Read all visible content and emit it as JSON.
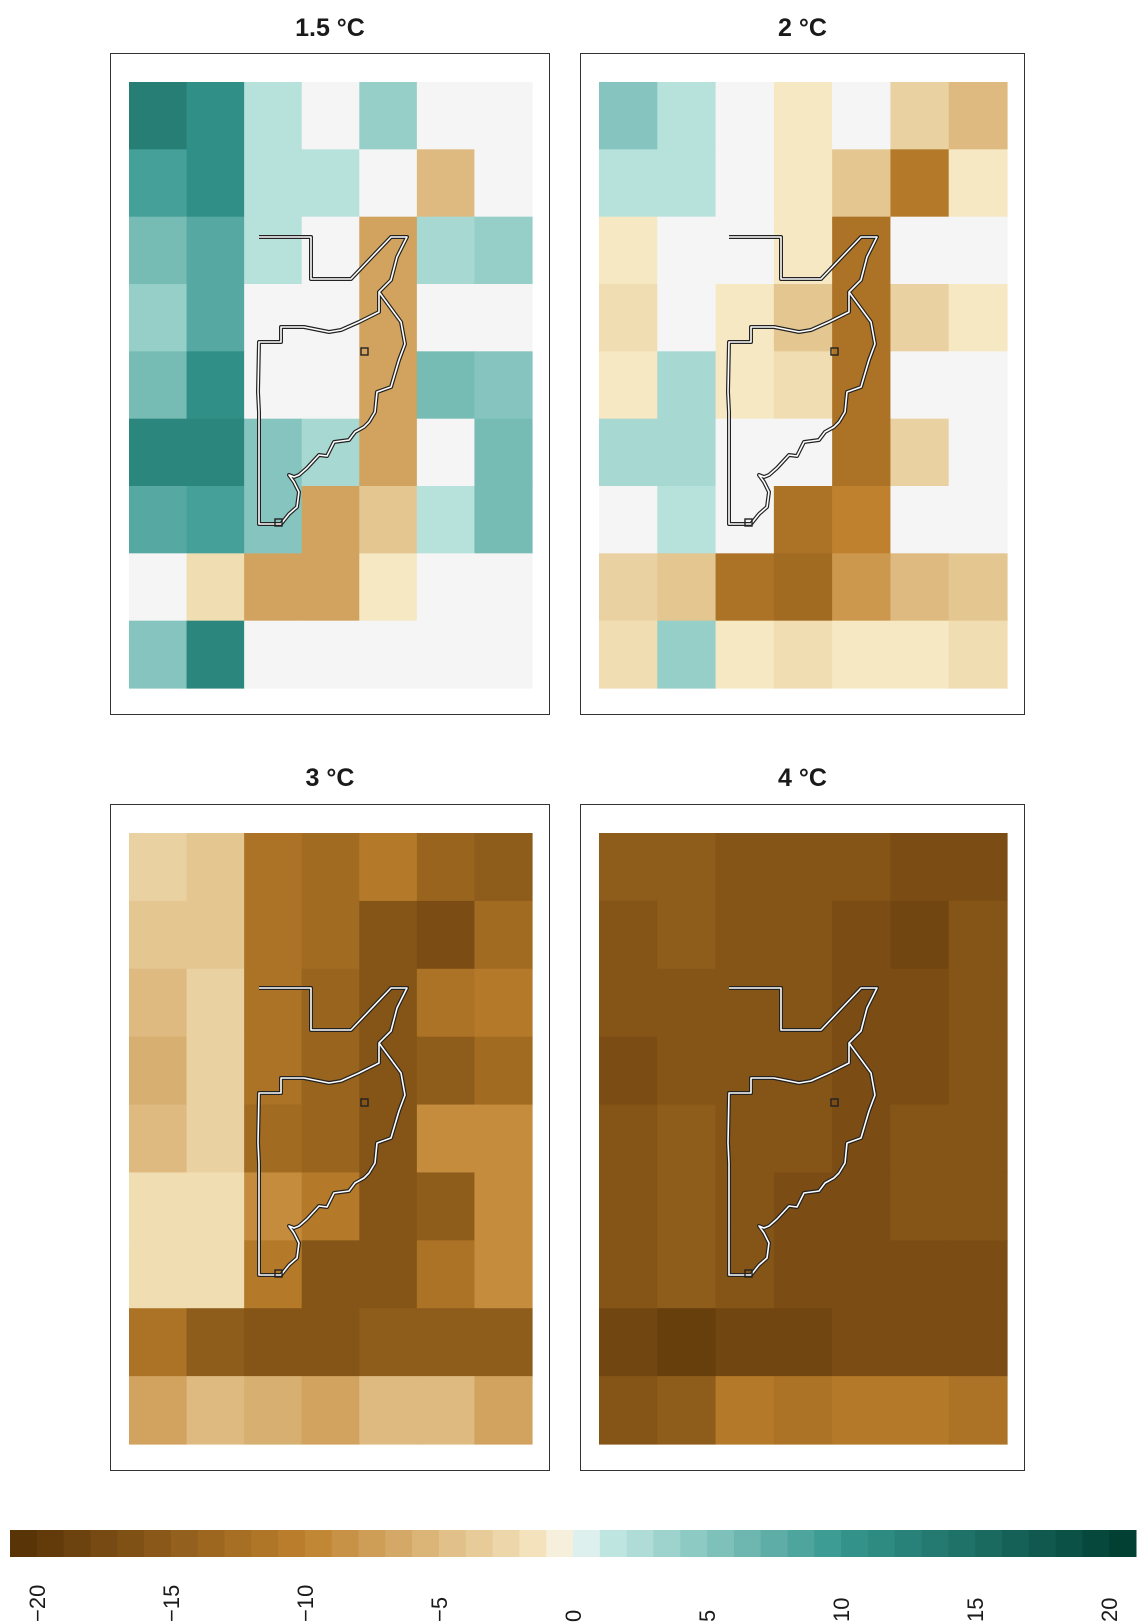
{
  "chart_data": [
    {
      "type": "heatmap",
      "title": "1.5 °C",
      "grid_rows": 9,
      "grid_cols": 7,
      "values": [
        [
          13,
          11,
          2,
          0,
          4,
          0,
          0
        ],
        [
          9,
          11,
          2,
          2,
          0,
          -5,
          0
        ],
        [
          6,
          8,
          2,
          0,
          -7,
          3,
          4
        ],
        [
          4,
          8,
          0,
          0,
          -7,
          0,
          0
        ],
        [
          6,
          11,
          0,
          0,
          -7,
          6,
          5
        ],
        [
          12,
          12,
          5,
          3,
          -7,
          0,
          6
        ],
        [
          8,
          9,
          5,
          -7,
          -4,
          2,
          6
        ],
        [
          0,
          -2,
          -7,
          -7,
          -1,
          0,
          0
        ],
        [
          5,
          12,
          0,
          0,
          0,
          0,
          0
        ]
      ]
    },
    {
      "type": "heatmap",
      "title": "2 °C",
      "grid_rows": 9,
      "grid_cols": 7,
      "values": [
        [
          5,
          2,
          0,
          -1,
          0,
          -3,
          -5
        ],
        [
          2,
          2,
          0,
          -1,
          -4,
          -11,
          -1
        ],
        [
          -1,
          0,
          0,
          -1,
          -12,
          0,
          0
        ],
        [
          -2,
          0,
          -1,
          -4,
          -12,
          -3,
          -1
        ],
        [
          -1,
          3,
          -1,
          -2,
          -12,
          0,
          0
        ],
        [
          3,
          3,
          0,
          0,
          -12,
          -3,
          0
        ],
        [
          0,
          2,
          0,
          -12,
          -10,
          0,
          0
        ],
        [
          -3,
          -4,
          -12,
          -13,
          -8,
          -5,
          -4
        ],
        [
          -2,
          4,
          -1,
          -2,
          -1,
          -1,
          -2
        ]
      ]
    },
    {
      "type": "heatmap",
      "title": "3 °C",
      "grid_rows": 9,
      "grid_cols": 7,
      "values": [
        [
          -3,
          -4,
          -12,
          -13,
          -11,
          -14,
          -15
        ],
        [
          -4,
          -4,
          -12,
          -13,
          -16,
          -17,
          -13
        ],
        [
          -5,
          -3,
          -12,
          -14,
          -16,
          -12,
          -11
        ],
        [
          -6,
          -3,
          -12,
          -14,
          -16,
          -15,
          -13
        ],
        [
          -5,
          -3,
          -13,
          -14,
          -16,
          -9,
          -9
        ],
        [
          -2,
          -2,
          -9,
          -11,
          -16,
          -15,
          -9
        ],
        [
          -2,
          -2,
          -11,
          -16,
          -16,
          -12,
          -9
        ],
        [
          -12,
          -15,
          -16,
          -16,
          -15,
          -15,
          -15
        ],
        [
          -7,
          -5,
          -6,
          -7,
          -5,
          -5,
          -7
        ]
      ]
    },
    {
      "type": "heatmap",
      "title": "4 °C",
      "grid_rows": 9,
      "grid_cols": 7,
      "values": [
        [
          -15,
          -15,
          -16,
          -16,
          -16,
          -17,
          -17
        ],
        [
          -16,
          -15,
          -16,
          -16,
          -17,
          -18,
          -16
        ],
        [
          -16,
          -16,
          -16,
          -16,
          -17,
          -17,
          -16
        ],
        [
          -17,
          -16,
          -16,
          -16,
          -17,
          -17,
          -16
        ],
        [
          -16,
          -15,
          -16,
          -16,
          -17,
          -16,
          -16
        ],
        [
          -16,
          -15,
          -16,
          -17,
          -17,
          -16,
          -16
        ],
        [
          -16,
          -15,
          -16,
          -17,
          -17,
          -17,
          -17
        ],
        [
          -18,
          -19,
          -18,
          -18,
          -17,
          -17,
          -17
        ],
        [
          -16,
          -15,
          -11,
          -12,
          -11,
          -11,
          -12
        ]
      ]
    }
  ],
  "colorbar": {
    "range": [
      -21,
      21
    ],
    "tick_values": [
      -20,
      -15,
      -10,
      -5,
      0,
      5,
      10,
      15,
      20
    ],
    "tick_labels": [
      "−20",
      "−15",
      "−10",
      "−5",
      "0",
      "5",
      "10",
      "15",
      "20"
    ],
    "colors": {
      "neg_extreme": "#543005",
      "neg_mid": "#bf812d",
      "neg_light": "#f6e8c3",
      "zero": "#f5f5f5",
      "pos_light": "#c7eae5",
      "pos_mid": "#35978f",
      "pos_extreme": "#003c30"
    }
  }
}
